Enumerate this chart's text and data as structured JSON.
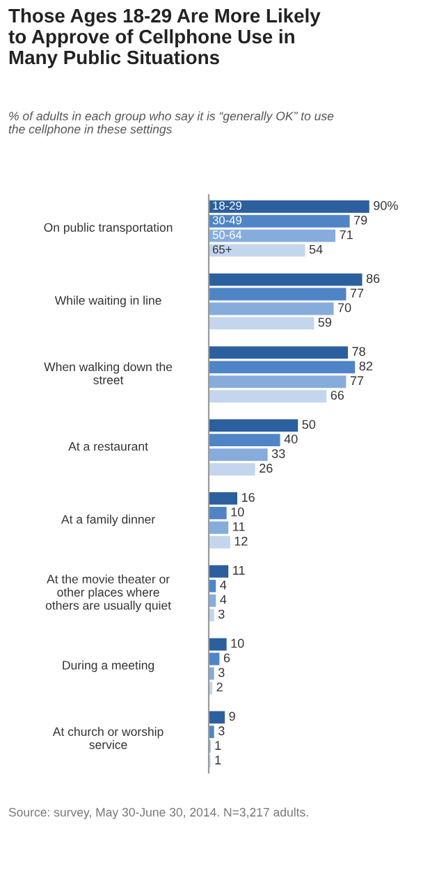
{
  "chart_data": {
    "type": "bar",
    "orientation": "horizontal",
    "title": "Those Ages 18-29 Are More Likely to Approve of Cellphone Use in Many Public Situations",
    "subtitle": "% of adults in each group who say it is “generally OK” to use the cellphone in these settings",
    "categories": [
      "On public transportation",
      "While waiting in line",
      "When walking down the street",
      "At a restaurant",
      "At a family dinner",
      "At the movie theater or other places where others are usually quiet",
      "During a meeting",
      "At church or worship service"
    ],
    "series": [
      {
        "name": "18-29",
        "color": "#2c5f9e",
        "values": [
          90,
          86,
          78,
          50,
          16,
          11,
          10,
          9
        ],
        "value_labels": [
          "90%",
          "86",
          "78",
          "50",
          "16",
          "11",
          "10",
          "9"
        ]
      },
      {
        "name": "30-49",
        "color": "#4f85c6",
        "values": [
          79,
          77,
          82,
          40,
          10,
          4,
          6,
          3
        ],
        "value_labels": [
          "79",
          "77",
          "82",
          "40",
          "10",
          "4",
          "6",
          "3"
        ]
      },
      {
        "name": "50-64",
        "color": "#86acdc",
        "values": [
          71,
          70,
          77,
          33,
          11,
          4,
          3,
          1
        ],
        "value_labels": [
          "71",
          "70",
          "77",
          "33",
          "11",
          "4",
          "3",
          "1"
        ]
      },
      {
        "name": "65+",
        "color": "#c3d6ee",
        "values": [
          54,
          59,
          66,
          26,
          12,
          3,
          2,
          1
        ],
        "value_labels": [
          "54",
          "59",
          "66",
          "26",
          "12",
          "3",
          "2",
          "1"
        ]
      }
    ],
    "annotations": [
      "Source: survey, May 30-June 30, 2014. N=3,217 adults."
    ],
    "legend": false
  }
}
